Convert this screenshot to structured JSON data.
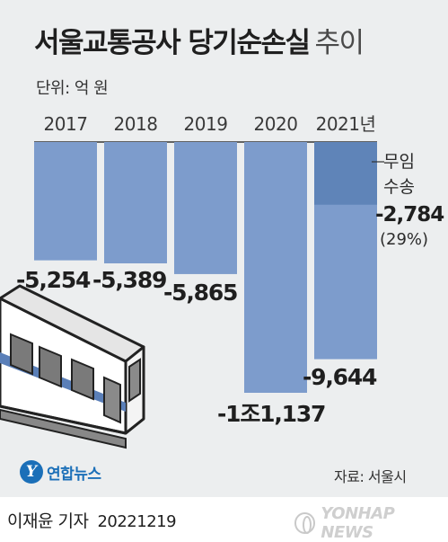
{
  "title": "서울교통공사 당기순손실",
  "title_suffix": "추이",
  "unit": "단위: 억 원",
  "source": "자료: 서울시",
  "logo": {
    "mark": "Y",
    "name": "연합뉴스"
  },
  "footer": {
    "author": "이재윤 기자",
    "date": "20221219",
    "agency": "YONHAP NEWS"
  },
  "colors": {
    "bar": "#7d9ccc",
    "bar_highlight": "#5f84b8",
    "panel": "#eceeef",
    "text": "#1f1f1f"
  },
  "chart_data": {
    "type": "bar",
    "orientation": "vertical-down",
    "title": "서울교통공사 당기순손실 추이",
    "unit": "억 원",
    "categories": [
      "2017",
      "2018",
      "2019",
      "2020",
      "2021년"
    ],
    "values": [
      -5254,
      -5389,
      -5865,
      -11137,
      -9644
    ],
    "value_labels": [
      "-5,254",
      "-5,389",
      "-5,865",
      "-1조1,137",
      "-9,644"
    ],
    "ylim": [
      -11137,
      0
    ],
    "grid": false,
    "legend": "none",
    "annotation": {
      "category": "2021년",
      "label_line1": "무임",
      "label_line2": "수송",
      "value": -2784,
      "value_label": "-2,784",
      "share_label": "(29%)"
    }
  }
}
